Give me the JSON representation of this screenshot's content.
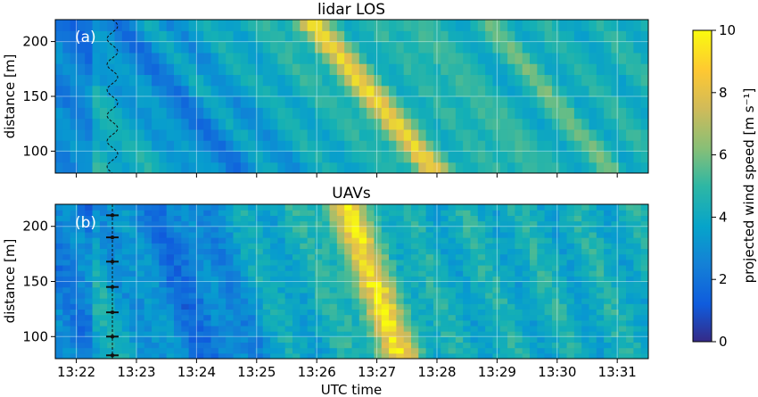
{
  "colorbar": {
    "label": "projected wind speed [m s⁻¹]",
    "min": 0,
    "max": 10,
    "ticks": [
      "0",
      "2",
      "4",
      "6",
      "8",
      "10"
    ],
    "colormap": "parula"
  },
  "xlabel": "UTC time",
  "x_ticks": [
    "13:22",
    "13:23",
    "13:24",
    "13:25",
    "13:26",
    "13:27",
    "13:28",
    "13:29",
    "13:30",
    "13:31"
  ],
  "chart_data": [
    {
      "type": "heatmap",
      "title": "lidar LOS",
      "panel_label": "(a)",
      "xlabel": "",
      "ylabel": "distance [m]",
      "x_range": [
        "13:21:39",
        "13:31:31"
      ],
      "ylim": [
        80,
        220
      ],
      "y_ticks": [
        100,
        150,
        200
      ],
      "grid": true,
      "band_centers_x": [
        "13:24:10",
        "13:26:55",
        "13:28:30",
        "13:29:55"
      ],
      "hot_region": {
        "x": "13:26:55",
        "value": 7.5
      },
      "cold_region": {
        "x": "13:23:50",
        "value": 2.5
      },
      "background_value": 4.8,
      "overlay_track_x": "13:22:36"
    },
    {
      "type": "heatmap",
      "title": "UAVs",
      "panel_label": "(b)",
      "xlabel": "UTC time",
      "ylabel": "distance [m]",
      "x_range": [
        "13:21:39",
        "13:31:31"
      ],
      "ylim": [
        80,
        220
      ],
      "y_ticks": [
        100,
        150,
        200
      ],
      "grid": true,
      "hot_region": {
        "x": "13:26:55",
        "value": 9.0
      },
      "cold_region": {
        "x": "13:23:50",
        "value": 2.3
      },
      "background_value": 4.6,
      "uav_positions_m": [
        83,
        100,
        122,
        145,
        168,
        190,
        210
      ]
    }
  ]
}
